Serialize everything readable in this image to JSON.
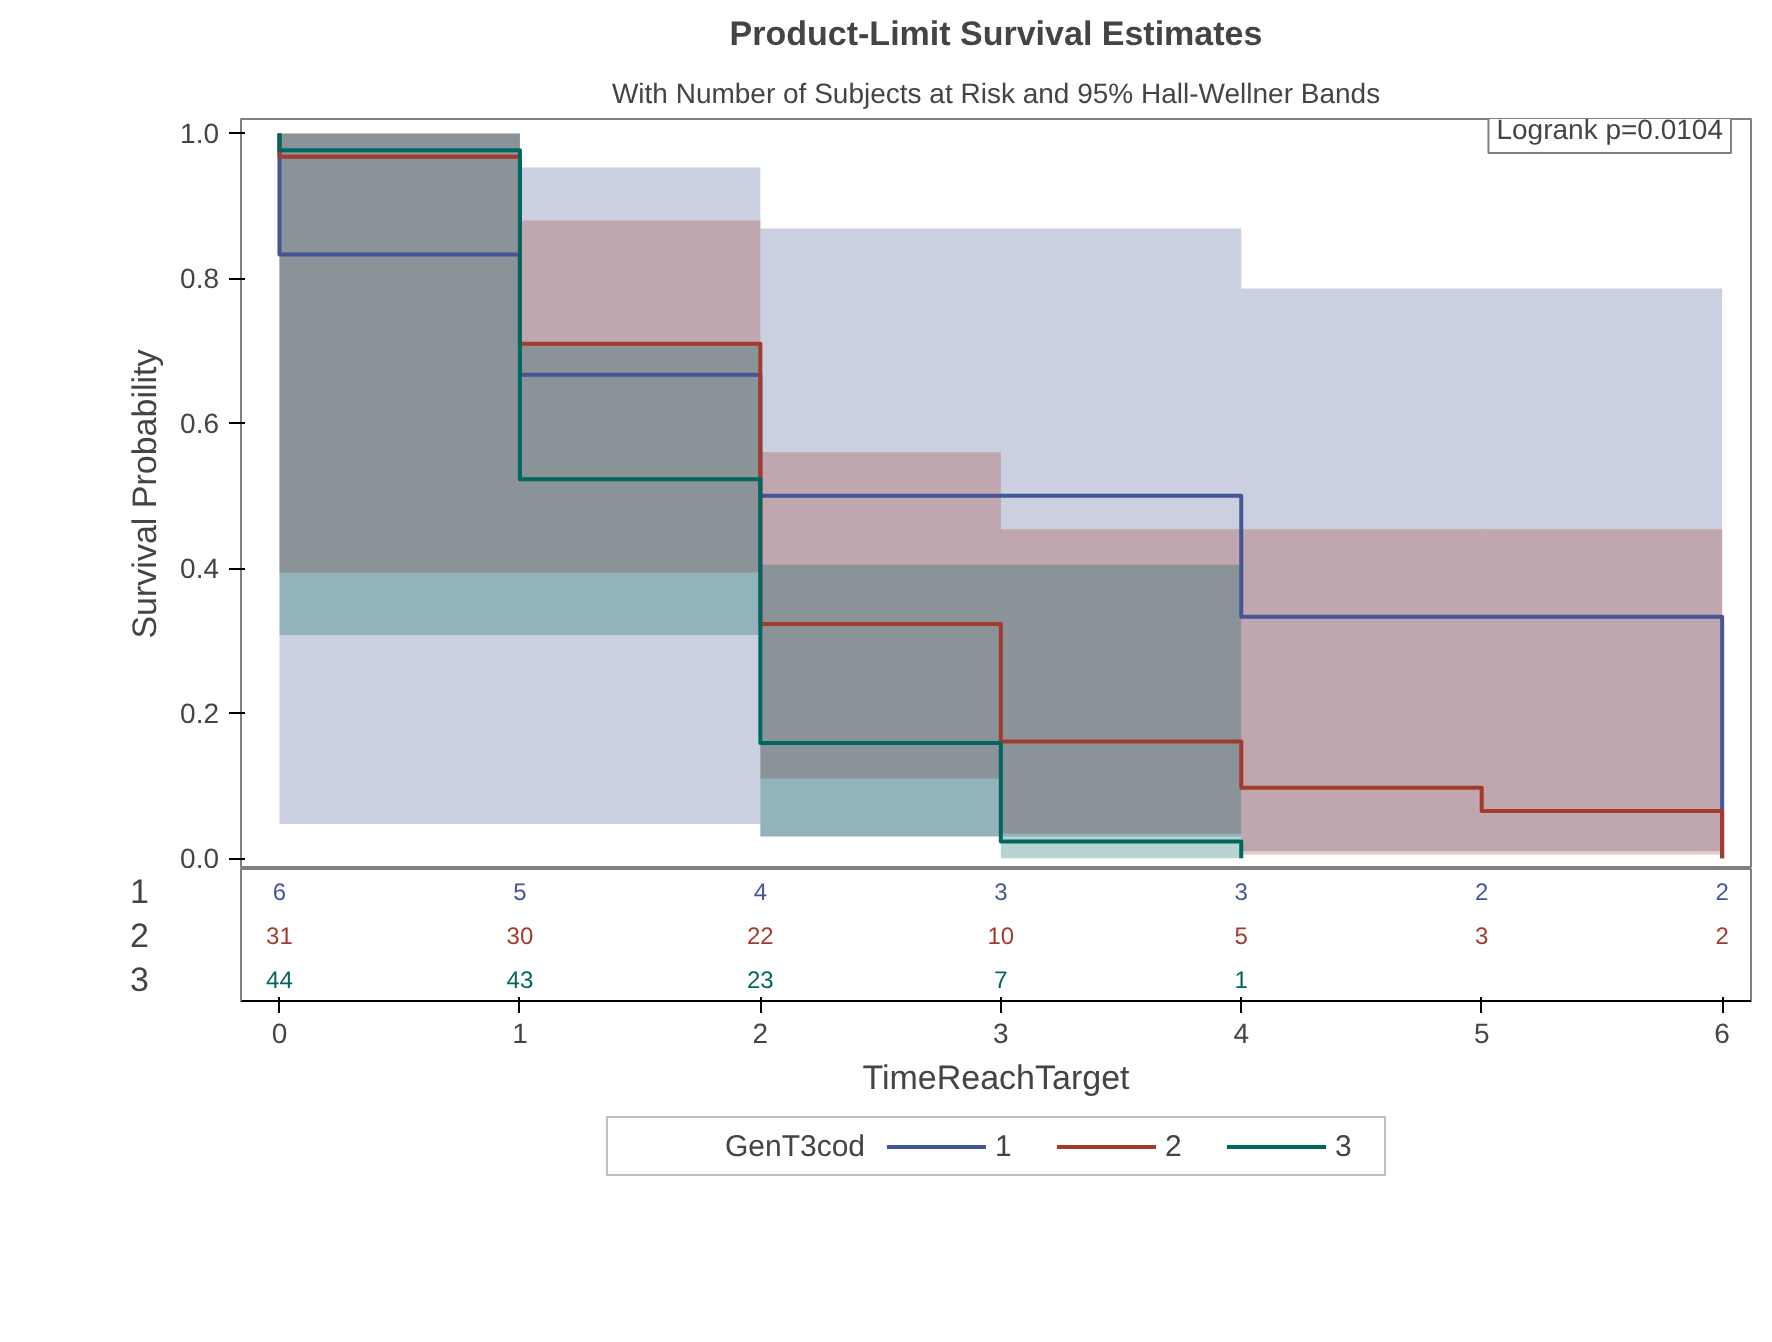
{
  "chart_data": [
    {
      "type": "step",
      "title": "Product-Limit Survival Estimates",
      "subtitle": "With Number of Subjects at Risk and 95% Hall-Wellner Bands",
      "ylabel": "Survival Probability",
      "legend_title": "GenT3cod",
      "legend": "bottom",
      "grid": false,
      "tick_labels": "y",
      "xlim": [
        -0.16,
        6.12
      ],
      "xticks": [
        0,
        1,
        2,
        3,
        4,
        5,
        6
      ],
      "ylim": [
        -0.015,
        1.02
      ],
      "yticks": [
        {
          "value": 0,
          "label": "0.0"
        },
        {
          "value": 0.2,
          "label": "0.2"
        },
        {
          "value": 0.4,
          "label": "0.4"
        },
        {
          "value": 0.6,
          "label": "0.6"
        },
        {
          "value": 0.8,
          "label": "0.8"
        },
        {
          "value": 1,
          "label": "1.0"
        }
      ],
      "series": [
        {
          "name": "1",
          "color": "#445694",
          "x": [
            0,
            0,
            1,
            2,
            4,
            6
          ],
          "values": [
            1,
            0.833,
            0.667,
            0.5,
            0.333,
            0
          ],
          "lower": [
            0.047,
            0.047,
            0.047,
            0.03,
            0.01,
            0.01
          ],
          "upper": [
            1,
            1,
            0.953,
            0.869,
            0.786,
            0.786
          ]
        },
        {
          "name": "2",
          "color": "#a23a2e",
          "x": [
            0,
            0,
            1,
            2,
            3,
            4,
            5,
            6
          ],
          "values": [
            1,
            0.968,
            0.71,
            0.323,
            0.161,
            0.097,
            0.065,
            0
          ],
          "lower": [
            0.394,
            0.394,
            0.394,
            0.11,
            0.034,
            0.005,
            0.005,
            0.005
          ],
          "upper": [
            1,
            1,
            0.88,
            0.56,
            0.454,
            0.454,
            0.454,
            0.454
          ]
        },
        {
          "name": "3",
          "color": "#01665e",
          "x": [
            0,
            0,
            1,
            2,
            3,
            4
          ],
          "values": [
            1,
            0.977,
            0.523,
            0.159,
            0.023,
            0
          ],
          "lower": [
            0.308,
            0.308,
            0.308,
            0.03,
            0.0,
            0.0
          ],
          "upper": [
            1,
            1,
            0.71,
            0.405,
            0.405,
            0.405
          ]
        }
      ],
      "annotations": [
        "Logrank p=0.0104"
      ]
    },
    {
      "type": "heatmap",
      "xlabel": "TimeReachTarget",
      "data_labels": true,
      "categories": [
        "0",
        "1",
        "2",
        "3",
        "4",
        "5",
        "6"
      ],
      "y_categories": [
        "1",
        "2",
        "3"
      ],
      "cells": [
        [
          6,
          5,
          4,
          3,
          3,
          2,
          2
        ],
        [
          31,
          30,
          22,
          10,
          5,
          3,
          2
        ],
        [
          44,
          43,
          23,
          7,
          1,
          null,
          null
        ]
      ]
    }
  ]
}
